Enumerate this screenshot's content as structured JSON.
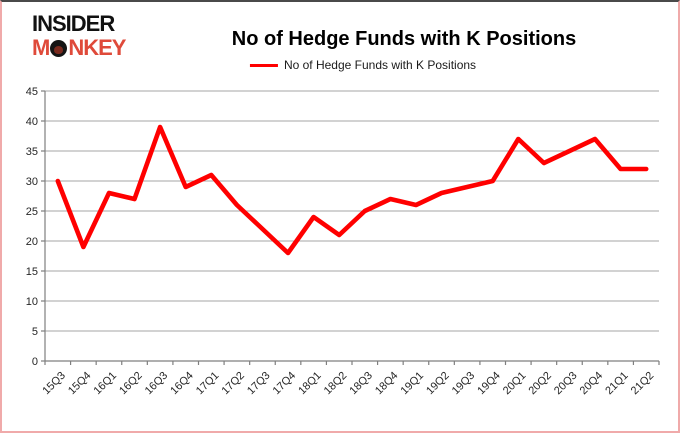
{
  "logo": {
    "line1": "INSIDER",
    "line2_pre": "M",
    "line2_post": "NKEY",
    "monkey_red": "#df4a3a"
  },
  "header": {
    "title": "No of Hedge Funds with K Positions"
  },
  "legend": {
    "label": "No of Hedge Funds with K Positions",
    "line_color": "#ff0000"
  },
  "chart_data": {
    "type": "line",
    "title": "No of Hedge Funds with K Positions",
    "categories": [
      "15Q3",
      "15Q4",
      "16Q1",
      "16Q2",
      "16Q3",
      "16Q4",
      "17Q1",
      "17Q2",
      "17Q3",
      "17Q4",
      "18Q1",
      "18Q2",
      "18Q3",
      "18Q4",
      "19Q1",
      "19Q2",
      "19Q3",
      "19Q4",
      "20Q1",
      "20Q2",
      "20Q3",
      "20Q4",
      "21Q1",
      "21Q2"
    ],
    "series": [
      {
        "name": "No of Hedge Funds with K Positions",
        "color": "#ff0000",
        "values": [
          30,
          19,
          28,
          27,
          39,
          29,
          31,
          26,
          22,
          18,
          24,
          21,
          25,
          27,
          26,
          28,
          29,
          30,
          37,
          33,
          35,
          37,
          32,
          32
        ]
      }
    ],
    "ylim": [
      0,
      45
    ],
    "yticks": [
      0,
      5,
      10,
      15,
      20,
      25,
      30,
      35,
      40,
      45
    ],
    "xlabel": "",
    "ylabel": "",
    "grid": "horizontal",
    "legend_position": "top-center",
    "colors": {
      "gridline": "#a6a6a6",
      "axis": "#7f7f7f",
      "tick_label": "#262626",
      "background": "#ffffff",
      "page_border": "#f0aaaa"
    }
  }
}
